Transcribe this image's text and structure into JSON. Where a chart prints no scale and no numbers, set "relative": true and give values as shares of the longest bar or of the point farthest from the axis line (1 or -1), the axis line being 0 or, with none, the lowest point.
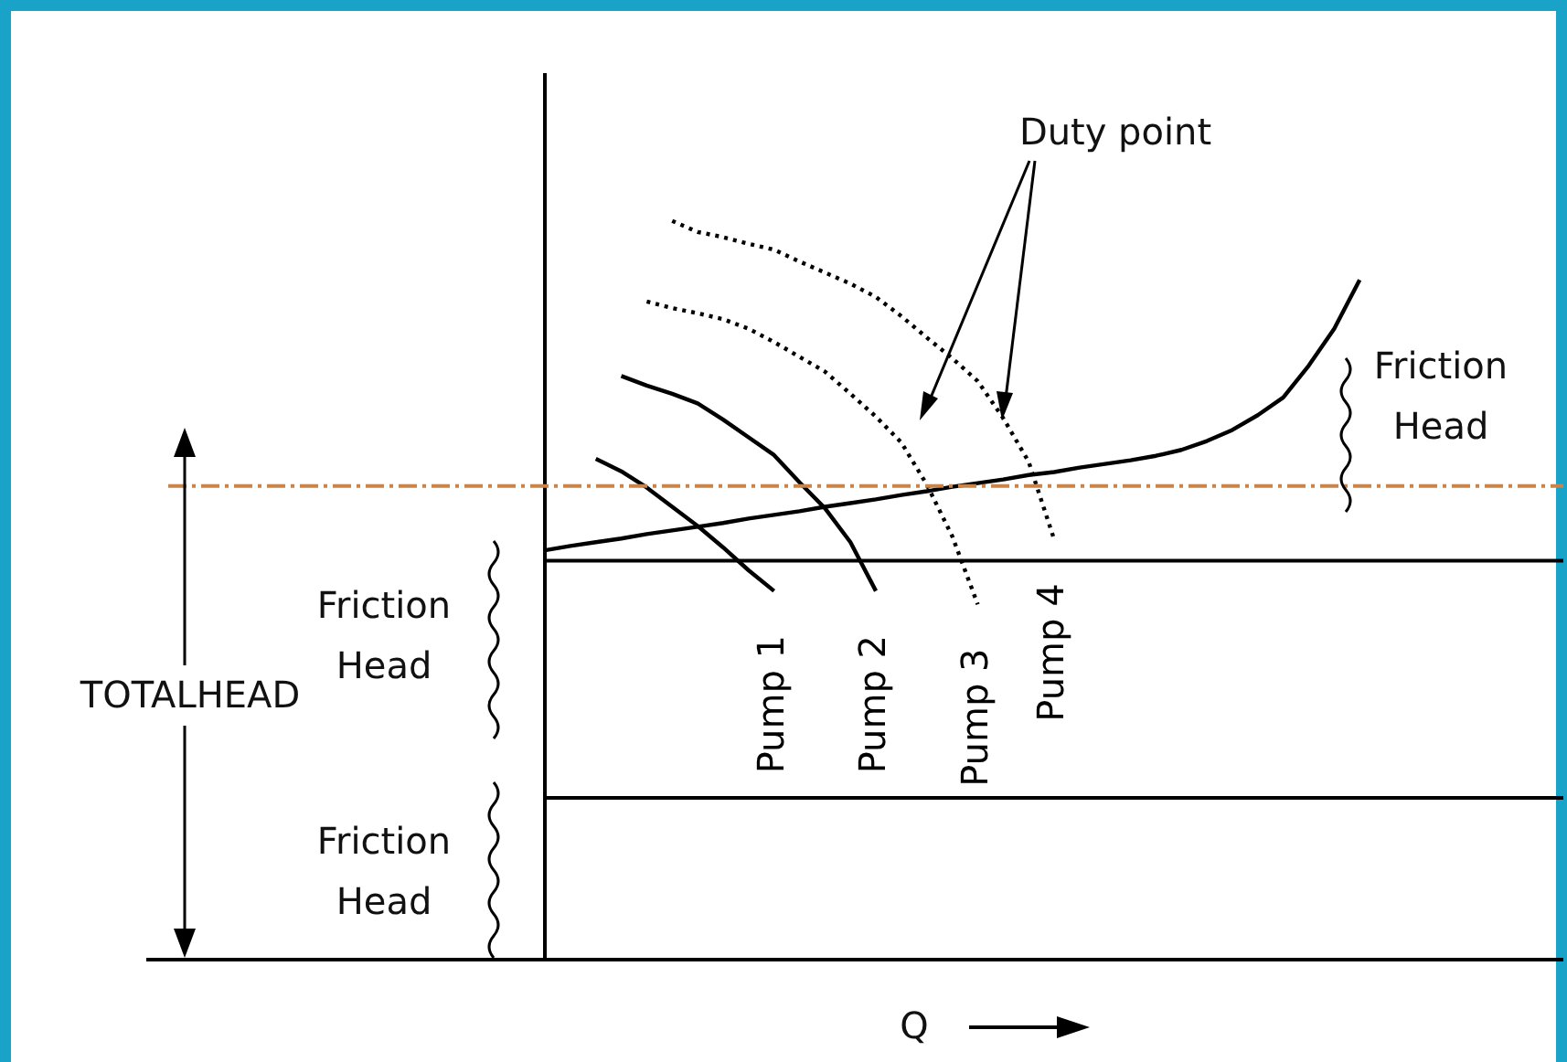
{
  "chart_data": {
    "type": "line",
    "relative": true,
    "xlabel": "Q",
    "marker": "none",
    "categories": [
      null,
      null,
      null,
      null,
      null,
      null,
      null,
      null,
      null,
      null,
      null,
      null,
      null,
      null,
      null,
      null,
      null,
      null,
      null,
      null,
      null,
      null,
      null,
      null,
      null,
      null,
      null,
      null,
      null,
      null,
      null,
      null,
      null,
      null,
      null,
      null,
      null,
      null,
      null,
      null,
      null
    ],
    "series": [
      {
        "name": "Pump 1",
        "color": "#000000",
        "line_style": "solid",
        "values": [
          null,
          null,
          0.678,
          0.661,
          0.639,
          0.613,
          0.587,
          0.558,
          0.527,
          0.499,
          null,
          null,
          null,
          null,
          null,
          null,
          null,
          null,
          null,
          null,
          null,
          null,
          null,
          null,
          null,
          null,
          null,
          null,
          null,
          null,
          null,
          null,
          null,
          null,
          null,
          null,
          null,
          null,
          null,
          null,
          null
        ]
      },
      {
        "name": "Pump 2",
        "color": "#000000",
        "line_style": "solid",
        "values": [
          null,
          null,
          null,
          0.79,
          0.777,
          0.766,
          0.753,
          0.731,
          0.707,
          0.683,
          0.646,
          0.611,
          0.565,
          0.499,
          null,
          null,
          null,
          null,
          null,
          null,
          null,
          null,
          null,
          null,
          null,
          null,
          null,
          null,
          null,
          null,
          null,
          null,
          null,
          null,
          null,
          null,
          null,
          null,
          null,
          null,
          null
        ]
      },
      {
        "name": "Pump 3",
        "color": "#000000",
        "line_style": "dotted",
        "values": [
          null,
          null,
          null,
          null,
          0.891,
          0.882,
          0.875,
          0.867,
          0.854,
          0.836,
          0.816,
          0.796,
          0.766,
          0.735,
          0.7,
          0.643,
          0.573,
          0.481,
          null,
          null,
          null,
          null,
          null,
          null,
          null,
          null,
          null,
          null,
          null,
          null,
          null,
          null,
          null,
          null,
          null,
          null,
          null,
          null,
          null,
          null,
          null
        ]
      },
      {
        "name": "Pump 4",
        "color": "#000000",
        "line_style": "dotted",
        "values": [
          null,
          null,
          null,
          null,
          null,
          1.0,
          0.985,
          0.978,
          0.969,
          0.961,
          0.945,
          0.93,
          0.915,
          0.897,
          0.871,
          0.842,
          0.814,
          0.783,
          0.733,
          0.674,
          0.569,
          null,
          null,
          null,
          null,
          null,
          null,
          null,
          null,
          null,
          null,
          null,
          null,
          null,
          null,
          null,
          null,
          null,
          null,
          null,
          null
        ]
      },
      {
        "color": "#000000",
        "line_style": "solid",
        "values": [
          0.554,
          0.56,
          0.565,
          0.57,
          0.576,
          0.581,
          0.586,
          0.591,
          0.597,
          0.602,
          0.607,
          0.613,
          0.618,
          0.623,
          0.629,
          0.634,
          0.64,
          0.645,
          0.65,
          0.656,
          0.66,
          0.666,
          0.671,
          0.676,
          0.682,
          0.69,
          0.702,
          0.717,
          0.737,
          0.761,
          0.804,
          0.854,
          0.92,
          null,
          null,
          null,
          null,
          null,
          null,
          null,
          null
        ]
      }
    ],
    "ref_lines": [
      {
        "axis": "y",
        "value": 0.54
      },
      {
        "axis": "y",
        "value": 0.219
      },
      {
        "axis": "y",
        "value": 0.641,
        "color": "#c8844a",
        "line_style": "dashed"
      }
    ],
    "annotations": [
      "Duty point",
      "Friction Head",
      "Friction Head",
      "Friction Head",
      "TOTALHEAD"
    ]
  }
}
